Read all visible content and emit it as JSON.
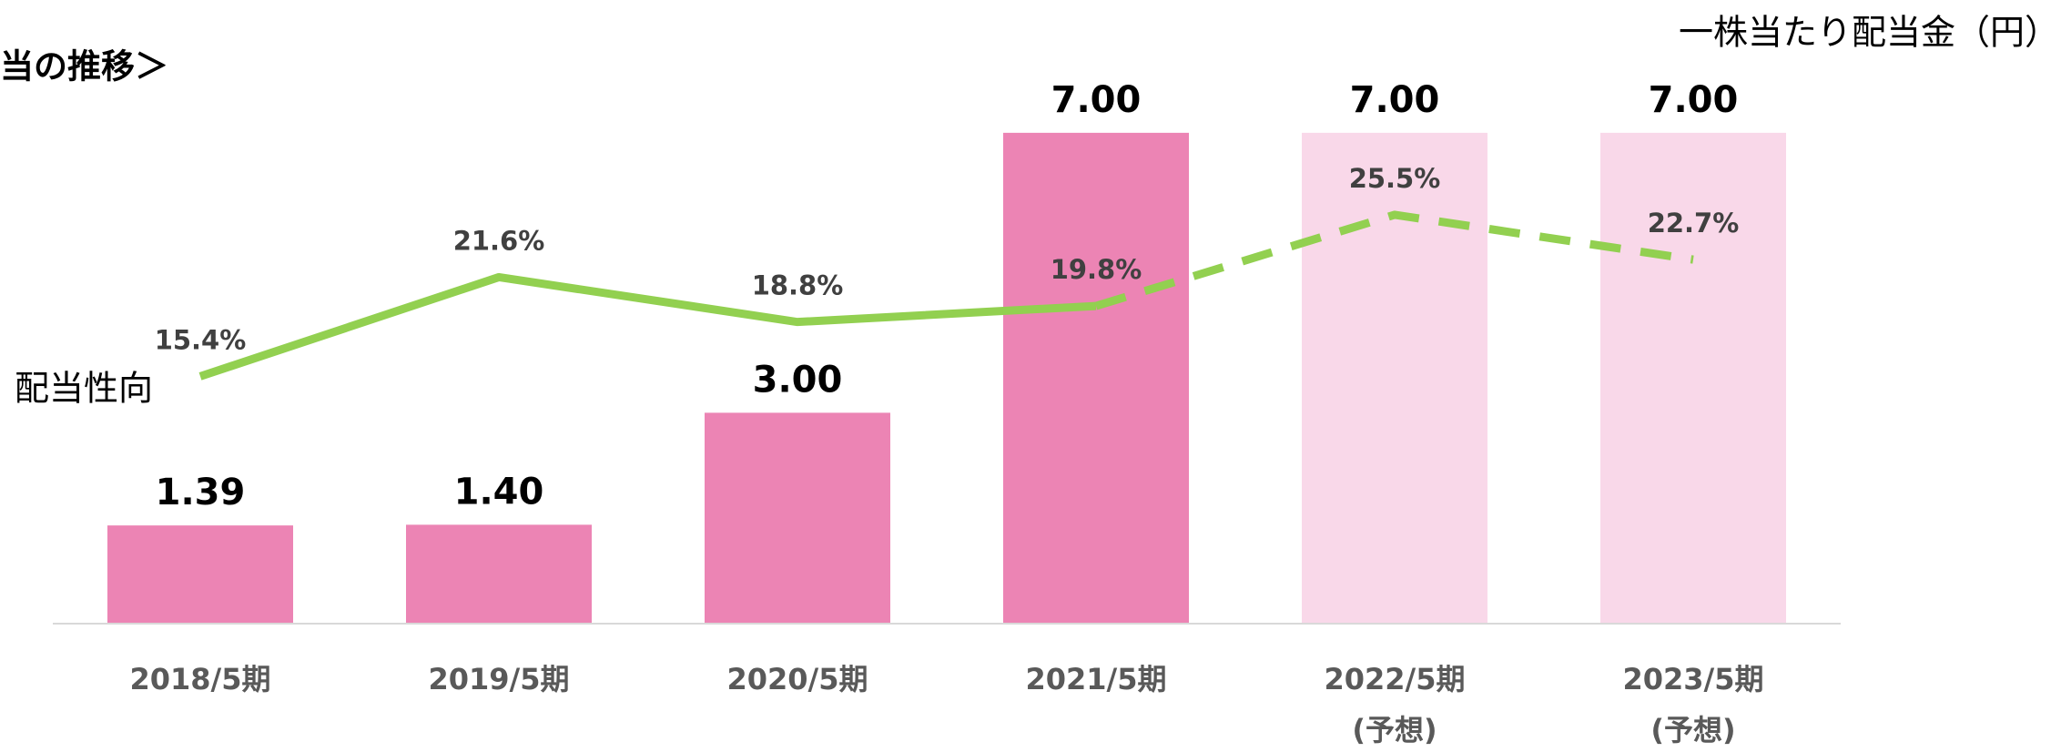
{
  "chart_data": {
    "type": "bar",
    "title": "当の推移＞",
    "y_label": "一株当たり配当金（円）",
    "categories": [
      [
        "2018/5期"
      ],
      [
        "2019/5期"
      ],
      [
        "2020/5期"
      ],
      [
        "2021/5期"
      ],
      [
        "2022/5期",
        "(予想)"
      ],
      [
        "2023/5期",
        "(予想)"
      ]
    ],
    "ylim": [
      0,
      8
    ],
    "y2lim": [
      0,
      35
    ],
    "series": [
      {
        "name": "一株当たり配当金",
        "type": "bar",
        "colors": [
          "#ec84b4",
          "#ec84b4",
          "#ec84b4",
          "#ec84b4",
          "#f9d8e9",
          "#f9d8e9"
        ],
        "values": [
          1.39,
          1.4,
          3.0,
          7.0,
          7.0,
          7.0
        ],
        "value_labels": [
          "1.39",
          "1.40",
          "3.00",
          "7.00",
          "7.00",
          "7.00"
        ]
      },
      {
        "name": "配当性向",
        "type": "line",
        "axis": "y2",
        "color": "#92d050",
        "dash_start": 3,
        "values": [
          15.4,
          21.6,
          18.8,
          19.8,
          25.5,
          22.7
        ],
        "value_labels": [
          "15.4%",
          "21.6%",
          "18.8%",
          "19.8%",
          "25.5%",
          "22.7%"
        ]
      }
    ]
  }
}
